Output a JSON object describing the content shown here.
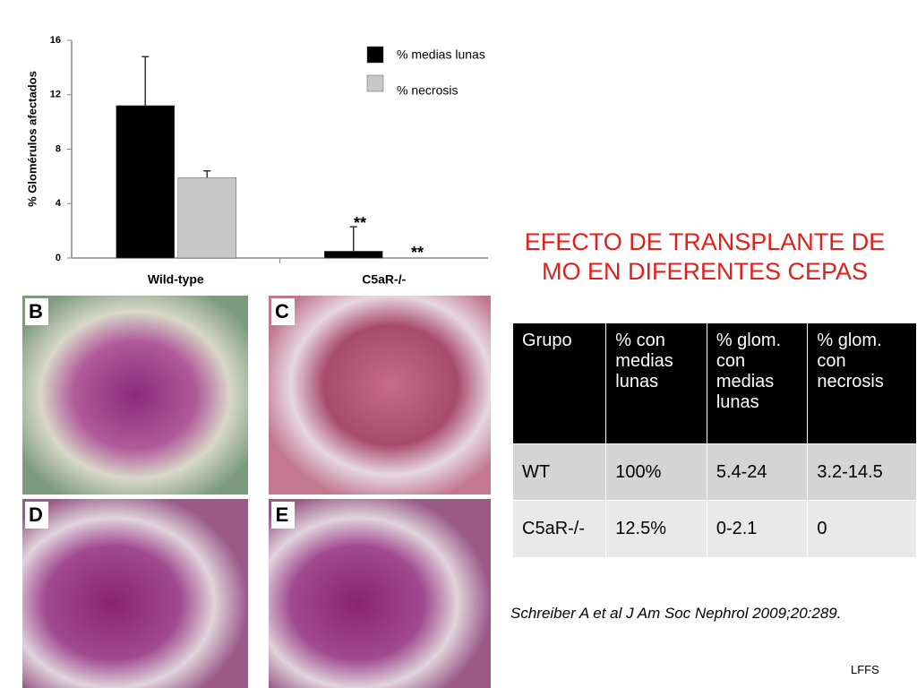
{
  "chart_data": {
    "type": "bar",
    "y_label": "% Glomérulos afectados",
    "categories": [
      "Wild-type",
      "C5aR-/-"
    ],
    "series": [
      {
        "name": "% medias lunas",
        "color": "#000000",
        "values": [
          11.2,
          0.5
        ],
        "errors": [
          3.6,
          1.8
        ]
      },
      {
        "name": "% necrosis",
        "color": "#c8c8c8",
        "values": [
          5.9,
          0
        ],
        "errors": [
          0.5,
          null
        ]
      }
    ],
    "annotations": [
      "**",
      "**"
    ],
    "ylim": [
      0,
      16
    ],
    "yticks": [
      0,
      4,
      8,
      12,
      16
    ]
  },
  "panels": [
    "B",
    "C",
    "D",
    "E"
  ],
  "title": "EFECTO DE TRANSPLANTE DE MO EN DIFERENTES CEPAS",
  "table": {
    "header": [
      "Grupo",
      "% con medias lunas",
      "% glom. con medias lunas",
      "% glom. con necrosis"
    ],
    "rows": [
      [
        "WT",
        "100%",
        "5.4-24",
        "3.2-14.5"
      ],
      [
        "C5aR-/-",
        "12.5%",
        "0-2.1",
        "0"
      ]
    ]
  },
  "citation": "Schreiber A et al  J Am Soc Nephrol 2009;20:289.",
  "footer": "LFFS"
}
